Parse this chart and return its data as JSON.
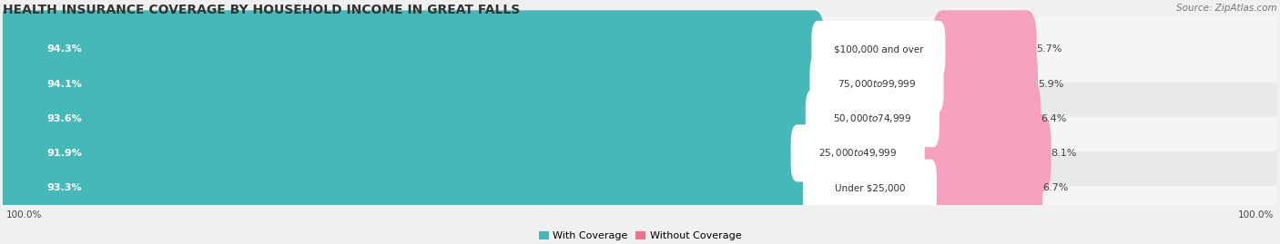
{
  "title": "HEALTH INSURANCE COVERAGE BY HOUSEHOLD INCOME IN GREAT FALLS",
  "source": "Source: ZipAtlas.com",
  "categories": [
    "Under $25,000",
    "$25,000 to $49,999",
    "$50,000 to $74,999",
    "$75,000 to $99,999",
    "$100,000 and over"
  ],
  "with_coverage": [
    93.3,
    91.9,
    93.6,
    94.1,
    94.3
  ],
  "without_coverage": [
    6.7,
    8.1,
    6.4,
    5.9,
    5.7
  ],
  "color_with": "#45b8b8",
  "color_without": "#f07090",
  "color_without_light": "#f4a0be",
  "bg_color": "#f0f0f0",
  "row_colors": [
    "#f5f5f5",
    "#e9e9e9"
  ],
  "title_fontsize": 10,
  "label_fontsize": 8,
  "bar_label_fontsize": 8,
  "tick_fontsize": 7.5,
  "source_fontsize": 7.5
}
